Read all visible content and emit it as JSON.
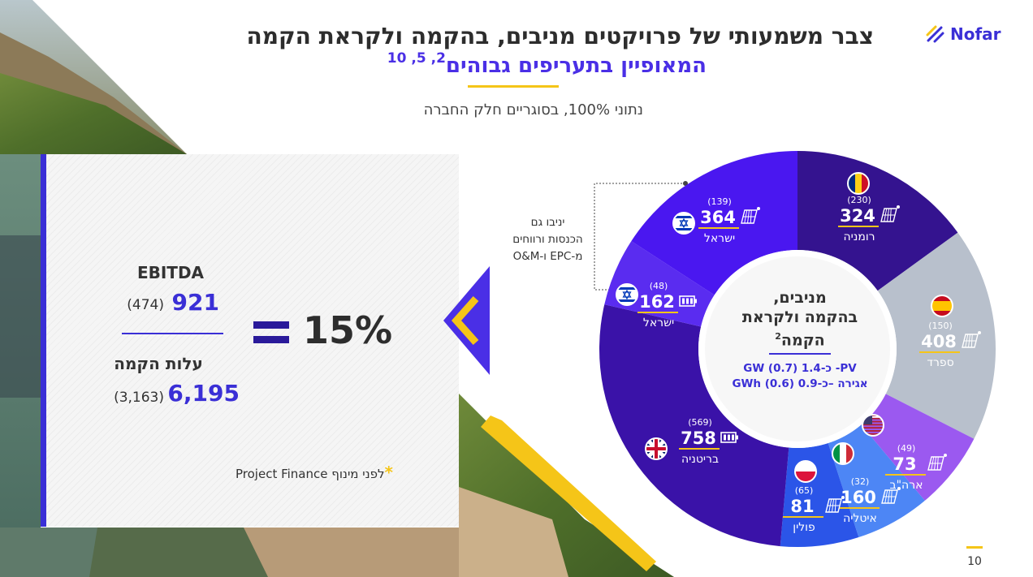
{
  "brand": {
    "name": "Nofar",
    "accent": "#3a2fd6",
    "yellow": "#f5c518"
  },
  "header": {
    "title_line1": "צבר משמעותי של פרויקטים מניבים, בהקמה ולקראת הקמה",
    "title_line2": "המאופיין בתעריפים גבוהים",
    "title_refs": "2, 5, 10",
    "subtitle": "נתוני 100%, בסוגריים חלק החברה"
  },
  "card": {
    "ebitda_label": "EBITDA",
    "ebitda_value": "921",
    "ebitda_share": "(474)",
    "cost_label": "עלות הקמה",
    "cost_value": "6,195",
    "cost_share": "(3,163)",
    "ratio": "15%",
    "footnote_star": "*",
    "footnote_text": "לפני מינוף Project Finance"
  },
  "callout": {
    "line1": "יניבו גם",
    "line2": "הכנסות ורווחים",
    "line3": "מ-EPC ו-O&M"
  },
  "donut_center": {
    "line1": "מניבים,",
    "line2": "בהקמה ולקראת",
    "line3": "הקמה",
    "ref": "2",
    "pv": "PV- כ-1.4 (0.7) GW",
    "storage": "אגירה –כ-0.9 (0.6) GWh"
  },
  "segments": [
    {
      "country": "רומניה",
      "value": "324",
      "share": "(230)",
      "tech": "solar-panel-icon",
      "flag": "romania-flag-icon",
      "color": "#34138f"
    },
    {
      "country": "ספרד",
      "value": "408",
      "share": "(150)",
      "tech": "solar-panel-icon",
      "flag": "spain-flag-icon",
      "color": "#b8c0cc"
    },
    {
      "country": "ארה\"ב",
      "value": "73",
      "share": "(49)",
      "tech": "solar-panel-icon",
      "flag": "usa-flag-icon",
      "color": "#9b59f0"
    },
    {
      "country": "איטליה",
      "value": "160",
      "share": "(32)",
      "tech": "solar-panel-icon",
      "flag": "italy-flag-icon",
      "color": "#4d86f5"
    },
    {
      "country": "פולין",
      "value": "81",
      "share": "(65)",
      "tech": "solar-panel-icon",
      "flag": "poland-flag-icon",
      "color": "#2b55e8"
    },
    {
      "country": "בריטניה",
      "value": "758",
      "share": "(569)",
      "tech": "battery-icon",
      "flag": "uk-flag-icon",
      "color": "#3a12a8"
    },
    {
      "country": "ישראל",
      "value": "162",
      "share": "(48)",
      "tech": "battery-icon",
      "flag": "israel-flag-icon",
      "color": "#5a2cf0"
    },
    {
      "country": "ישראל",
      "value": "364",
      "share": "(139)",
      "tech": "solar-panel-icon",
      "flag": "israel-flag-icon",
      "color": "#4a17f0"
    }
  ],
  "page": {
    "number": "10"
  }
}
